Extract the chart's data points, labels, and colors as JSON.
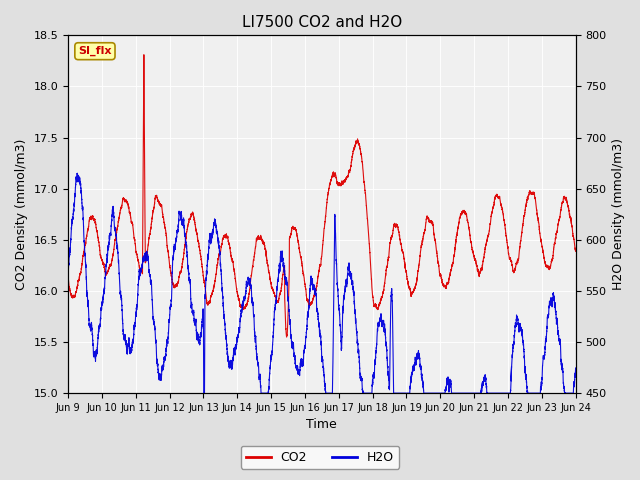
{
  "title": "LI7500 CO2 and H2O",
  "xlabel": "Time",
  "ylabel_left": "CO2 Density (mmol/m3)",
  "ylabel_right": "H2O Density (mmol/m3)",
  "co2_ylim": [
    15.0,
    18.5
  ],
  "h2o_ylim": [
    450,
    800
  ],
  "co2_color": "#dd0000",
  "h2o_color": "#0000dd",
  "fig_bg_color": "#e0e0e0",
  "ax_bg_color": "#f0f0f0",
  "legend_co2": "CO2",
  "legend_h2o": "H2O",
  "tab_label": "SI_flx",
  "tab_bg": "#ffffaa",
  "tab_border": "#aa8800",
  "x_tick_labels": [
    "Jun 9",
    "Jun 10",
    "Jun 11",
    "Jun 12",
    "Jun 13",
    "Jun 14",
    "Jun 15",
    "Jun 16",
    "Jun 17",
    "Jun 18",
    "Jun 19",
    "Jun 20",
    "Jun 21",
    "Jun 22",
    "Jun 23",
    "Jun 24"
  ],
  "n_days": 15,
  "seed": 42
}
